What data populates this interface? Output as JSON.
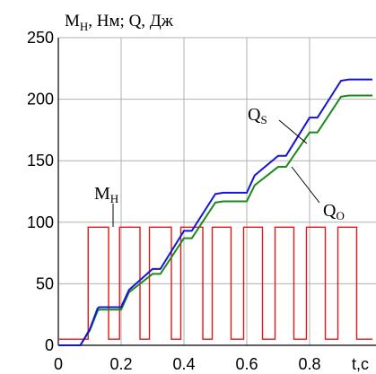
{
  "chart_data": {
    "type": "line",
    "title": "MН, Нм; Q, Дж",
    "title_main": "M",
    "title_sub": "H",
    "title_rest": ", Нм; Q, Дж",
    "xlabel": "t,c",
    "xlim": [
      0,
      1.0
    ],
    "ylim": [
      0,
      250
    ],
    "x_ticks": [
      "0",
      "0.2",
      "0.4",
      "0.6",
      "0.8"
    ],
    "x_tick_values": [
      0,
      0.2,
      0.4,
      0.6,
      0.8
    ],
    "y_ticks": [
      "0",
      "50",
      "100",
      "150",
      "200",
      "250"
    ],
    "y_tick_values": [
      0,
      50,
      100,
      150,
      200,
      250
    ],
    "grid": true,
    "series": [
      {
        "name": "Qs",
        "label_main": "Q",
        "label_sub": "S",
        "color": "#1414d8",
        "x": [
          0,
          0.05,
          0.07,
          0.1,
          0.125,
          0.13,
          0.2,
          0.225,
          0.3,
          0.325,
          0.4,
          0.425,
          0.5,
          0.525,
          0.6,
          0.625,
          0.7,
          0.725,
          0.8,
          0.825,
          0.9,
          0.925,
          1.0
        ],
        "y": [
          0,
          0,
          0,
          13,
          30,
          31,
          31,
          45,
          62,
          62,
          93,
          93,
          123,
          124,
          124,
          138,
          154,
          154,
          185,
          185,
          215,
          216,
          216
        ]
      },
      {
        "name": "Qo",
        "label_main": "Q",
        "label_sub": "O",
        "color": "#1a8a1a",
        "x": [
          0,
          0.05,
          0.07,
          0.1,
          0.125,
          0.13,
          0.2,
          0.225,
          0.3,
          0.325,
          0.4,
          0.425,
          0.5,
          0.525,
          0.6,
          0.625,
          0.7,
          0.725,
          0.8,
          0.825,
          0.9,
          0.925,
          1.0
        ],
        "y": [
          0,
          0,
          0,
          12,
          28,
          29,
          29,
          43,
          58,
          58,
          87,
          87,
          116,
          117,
          117,
          130,
          145,
          145,
          173,
          173,
          202,
          203,
          203
        ]
      },
      {
        "name": "MН",
        "label_main": "M",
        "label_sub": "H",
        "color": "#e01818",
        "step_pulses": [
          [
            0.095,
            0.16
          ],
          [
            0.195,
            0.26
          ],
          [
            0.29,
            0.36
          ],
          [
            0.39,
            0.46
          ],
          [
            0.49,
            0.55
          ],
          [
            0.59,
            0.65
          ],
          [
            0.69,
            0.75
          ],
          [
            0.79,
            0.85
          ],
          [
            0.89,
            0.95
          ]
        ],
        "low": 5,
        "high": 96
      }
    ]
  }
}
